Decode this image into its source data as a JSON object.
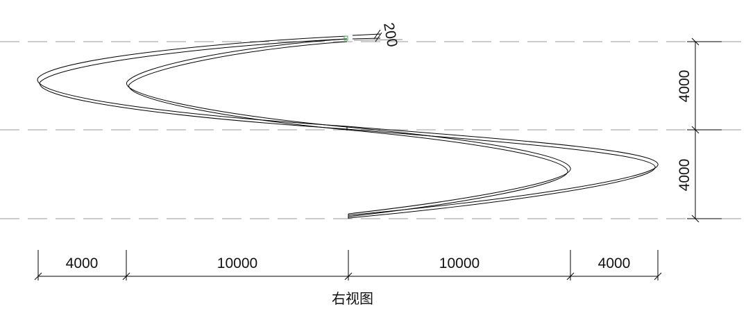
{
  "view_title": "右视图",
  "dimensions": {
    "horizontal": [
      "4000",
      "10000",
      "10000",
      "4000"
    ],
    "vertical": [
      "4000",
      "4000"
    ],
    "thickness": "200"
  },
  "colors": {
    "line": "#000000",
    "level_line": "#9a9a9a",
    "highlight": "#3cb043"
  }
}
